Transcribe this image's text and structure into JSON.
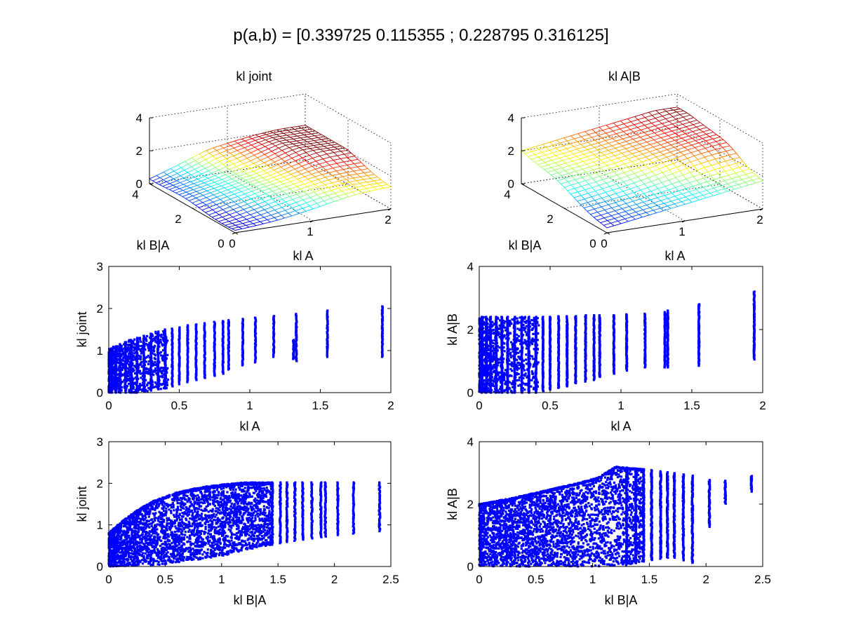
{
  "figure": {
    "suptitle": "p(a,b) = [0.339725 0.115355 ; 0.228795 0.316125]"
  },
  "colors": {
    "scatter": "#0000ff",
    "axes": "#000000",
    "background": "#ffffff",
    "surface_colormap": "jet"
  },
  "chart_data": [
    {
      "type": "surface",
      "title": "kl joint",
      "xlabel": "kl A",
      "ylabel": "kl B|A",
      "zlabel": "",
      "xticks": [
        "0",
        "1",
        "2"
      ],
      "yticks": [
        "4",
        "2",
        "0"
      ],
      "zticks": [
        "0",
        "2",
        "4"
      ],
      "xlim": [
        0,
        2
      ],
      "ylim": [
        0,
        4
      ],
      "zlim": [
        0,
        4
      ],
      "grid": true,
      "z_range_observed": [
        0,
        2.1
      ],
      "mesh": "wireframe colored by height (jet colormap)"
    },
    {
      "type": "surface",
      "title": "kl A|B",
      "xlabel": "kl A",
      "ylabel": "kl B|A",
      "zlabel": "",
      "xticks": [
        "0",
        "1",
        "2"
      ],
      "yticks": [
        "4",
        "2",
        "0"
      ],
      "zticks": [
        "0",
        "2",
        "4"
      ],
      "xlim": [
        0,
        2
      ],
      "ylim": [
        0,
        4
      ],
      "zlim": [
        0,
        4
      ],
      "grid": true,
      "z_range_observed": [
        0,
        3.2
      ],
      "mesh": "wireframe colored by height (jet colormap)"
    },
    {
      "type": "scatter",
      "title": "",
      "xlabel": "kl A",
      "ylabel": "kl joint",
      "xticks": [
        "0",
        "0.5",
        "1",
        "1.5",
        "2"
      ],
      "yticks": [
        "0",
        "1",
        "2",
        "3"
      ],
      "xlim": [
        0,
        2
      ],
      "ylim": [
        0,
        3
      ],
      "marker": "point",
      "columns": [
        {
          "x": 0.02,
          "ymin": 0,
          "ymax": 1.05
        },
        {
          "x": 0.05,
          "ymin": 0,
          "ymax": 1.1
        },
        {
          "x": 0.08,
          "ymin": 0,
          "ymax": 1.15
        },
        {
          "x": 0.12,
          "ymin": 0,
          "ymax": 1.2
        },
        {
          "x": 0.16,
          "ymin": 0,
          "ymax": 1.25
        },
        {
          "x": 0.2,
          "ymin": 0,
          "ymax": 1.3
        },
        {
          "x": 0.25,
          "ymin": 0.02,
          "ymax": 1.35
        },
        {
          "x": 0.3,
          "ymin": 0.05,
          "ymax": 1.4
        },
        {
          "x": 0.35,
          "ymin": 0.08,
          "ymax": 1.45
        },
        {
          "x": 0.4,
          "ymin": 0.1,
          "ymax": 1.5
        },
        {
          "x": 0.45,
          "ymin": 0.15,
          "ymax": 1.52
        },
        {
          "x": 0.5,
          "ymin": 0.2,
          "ymax": 1.55
        },
        {
          "x": 0.56,
          "ymin": 0.25,
          "ymax": 1.6
        },
        {
          "x": 0.62,
          "ymin": 0.3,
          "ymax": 1.62
        },
        {
          "x": 0.68,
          "ymin": 0.35,
          "ymax": 1.65
        },
        {
          "x": 0.75,
          "ymin": 0.4,
          "ymax": 1.68
        },
        {
          "x": 0.81,
          "ymin": 0.45,
          "ymax": 1.7
        },
        {
          "x": 0.85,
          "ymin": 0.55,
          "ymax": 1.72
        },
        {
          "x": 0.95,
          "ymin": 0.65,
          "ymax": 1.75
        },
        {
          "x": 1.04,
          "ymin": 0.72,
          "ymax": 1.78
        },
        {
          "x": 1.17,
          "ymin": 0.85,
          "ymax": 1.82
        },
        {
          "x": 1.31,
          "ymin": 0.8,
          "ymax": 1.25
        },
        {
          "x": 1.33,
          "ymin": 0.75,
          "ymax": 1.87
        },
        {
          "x": 1.55,
          "ymin": 0.85,
          "ymax": 1.95
        },
        {
          "x": 1.94,
          "ymin": 0.85,
          "ymax": 2.05
        }
      ]
    },
    {
      "type": "scatter",
      "title": "",
      "xlabel": "kl A",
      "ylabel": "kl A|B",
      "xticks": [
        "0",
        "0.5",
        "1",
        "1.5",
        "2"
      ],
      "yticks": [
        "0",
        "2",
        "4"
      ],
      "xlim": [
        0,
        2
      ],
      "ylim": [
        0,
        4
      ],
      "marker": "point",
      "columns": [
        {
          "x": 0.02,
          "ymin": 0,
          "ymax": 2.4
        },
        {
          "x": 0.05,
          "ymin": 0,
          "ymax": 2.4
        },
        {
          "x": 0.08,
          "ymin": 0,
          "ymax": 2.4
        },
        {
          "x": 0.12,
          "ymin": 0,
          "ymax": 2.4
        },
        {
          "x": 0.16,
          "ymin": 0,
          "ymax": 2.4
        },
        {
          "x": 0.2,
          "ymin": 0,
          "ymax": 2.4
        },
        {
          "x": 0.25,
          "ymin": 0,
          "ymax": 2.4
        },
        {
          "x": 0.3,
          "ymin": 0,
          "ymax": 2.4
        },
        {
          "x": 0.35,
          "ymin": 0,
          "ymax": 2.4
        },
        {
          "x": 0.4,
          "ymin": 0,
          "ymax": 2.4
        },
        {
          "x": 0.45,
          "ymin": 0.05,
          "ymax": 2.4
        },
        {
          "x": 0.5,
          "ymin": 0.1,
          "ymax": 2.4
        },
        {
          "x": 0.56,
          "ymin": 0.15,
          "ymax": 2.42
        },
        {
          "x": 0.62,
          "ymin": 0.2,
          "ymax": 2.42
        },
        {
          "x": 0.68,
          "ymin": 0.3,
          "ymax": 2.42
        },
        {
          "x": 0.75,
          "ymin": 0.35,
          "ymax": 2.45
        },
        {
          "x": 0.81,
          "ymin": 0.4,
          "ymax": 2.45
        },
        {
          "x": 0.85,
          "ymin": 0.5,
          "ymax": 2.45
        },
        {
          "x": 0.95,
          "ymin": 0.6,
          "ymax": 2.45
        },
        {
          "x": 1.04,
          "ymin": 0.7,
          "ymax": 2.48
        },
        {
          "x": 1.17,
          "ymin": 0.8,
          "ymax": 2.5
        },
        {
          "x": 1.31,
          "ymin": 0.8,
          "ymax": 2.55
        },
        {
          "x": 1.33,
          "ymin": 0.8,
          "ymax": 2.6
        },
        {
          "x": 1.55,
          "ymin": 0.85,
          "ymax": 2.8
        },
        {
          "x": 1.94,
          "ymin": 1.05,
          "ymax": 3.2
        }
      ]
    },
    {
      "type": "scatter",
      "title": "",
      "xlabel": "kl B|A",
      "ylabel": "kl joint",
      "xticks": [
        "0",
        "0.5",
        "1",
        "1.5",
        "2",
        "2.5"
      ],
      "yticks": [
        "0",
        "1",
        "2",
        "3"
      ],
      "xlim": [
        0,
        2.5
      ],
      "ylim": [
        0,
        3
      ],
      "marker": "point",
      "shape": "dense cloud rising from (0, 0–0.8) to a plateau near 2.0 by x≈1.1, with vertical streaks extending to x≈2.4",
      "upper_envelope": [
        [
          0,
          0.8
        ],
        [
          0.1,
          1.05
        ],
        [
          0.25,
          1.35
        ],
        [
          0.4,
          1.58
        ],
        [
          0.6,
          1.78
        ],
        [
          0.8,
          1.9
        ],
        [
          1.0,
          1.97
        ],
        [
          1.2,
          2.02
        ],
        [
          1.5,
          2.02
        ],
        [
          1.9,
          2.02
        ],
        [
          2.4,
          2.02
        ]
      ],
      "lower_envelope": [
        [
          0,
          0
        ],
        [
          0.5,
          0.05
        ],
        [
          1.0,
          0.25
        ],
        [
          1.3,
          0.45
        ],
        [
          1.6,
          0.6
        ],
        [
          2.0,
          0.75
        ],
        [
          2.4,
          0.85
        ]
      ],
      "streak_x": [
        1.45,
        1.52,
        1.58,
        1.65,
        1.72,
        1.8,
        1.88,
        1.92,
        2.03,
        2.17,
        2.4
      ]
    },
    {
      "type": "scatter",
      "title": "",
      "xlabel": "kl B|A",
      "ylabel": "kl A|B",
      "xticks": [
        "0",
        "0.5",
        "1",
        "1.5",
        "2",
        "2.5"
      ],
      "yticks": [
        "0",
        "2",
        "4"
      ],
      "xlim": [
        0,
        2.5
      ],
      "ylim": [
        0,
        4
      ],
      "marker": "point",
      "shape": "dense band from y≈0–2 at x=0 rising to ≈3.2 near x≈1.2, with looping arcs and vertical streaks extending to x≈2.4",
      "upper_envelope": [
        [
          0,
          2.0
        ],
        [
          0.3,
          2.2
        ],
        [
          0.6,
          2.45
        ],
        [
          0.9,
          2.7
        ],
        [
          1.05,
          2.85
        ],
        [
          1.2,
          3.2
        ],
        [
          1.5,
          3.1
        ],
        [
          1.7,
          3.0
        ],
        [
          1.9,
          2.9
        ],
        [
          2.1,
          2.7
        ],
        [
          2.4,
          2.9
        ]
      ],
      "lower_envelope": [
        [
          0,
          0
        ],
        [
          1.0,
          0
        ],
        [
          1.3,
          0.05
        ],
        [
          1.5,
          0.2
        ],
        [
          1.7,
          0.3
        ],
        [
          1.9,
          0.1
        ],
        [
          2.1,
          1.9
        ],
        [
          2.4,
          2.4
        ]
      ],
      "streak_x": [
        1.3,
        1.38,
        1.45,
        1.52,
        1.6,
        1.66,
        1.72,
        1.8,
        1.88,
        2.03,
        2.17,
        2.4
      ]
    }
  ]
}
